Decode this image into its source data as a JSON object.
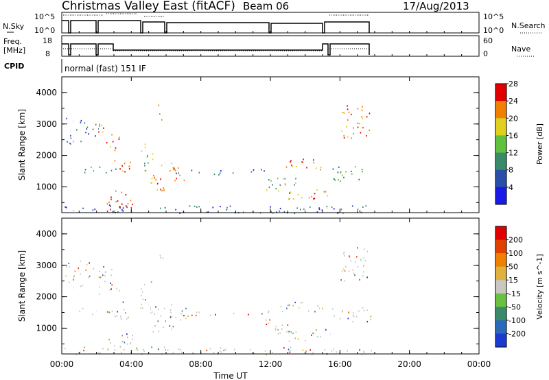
{
  "header": {
    "title": "Christmas Valley East (fitACF)",
    "beam": "Beam 06",
    "date": "17/Aug/2013"
  },
  "panels": {
    "nsky": {
      "label": "N.Sky",
      "ticks": [
        "10^5",
        "10^0"
      ],
      "right_label": "N.Search",
      "right_ticks": [
        "10^5",
        "10^0"
      ]
    },
    "freq": {
      "label_line1": "Freq.",
      "label_line2": "[MHz]",
      "ticks": [
        "18",
        "8"
      ],
      "right_label": "Nave",
      "right_ticks": [
        "60",
        "0"
      ]
    },
    "cpid": {
      "label": "CPID",
      "value": "normal (fast) 151 IF"
    }
  },
  "chart_data": [
    {
      "type": "heatmap",
      "title": "",
      "ylabel": "Slant Range [km]",
      "ylim": [
        180,
        4500
      ],
      "yticks": [
        "1000",
        "2000",
        "3000",
        "4000"
      ],
      "color_label": "Power [dB]",
      "color_ticks": [
        "4",
        "8",
        "12",
        "16",
        "20",
        "24",
        "28"
      ],
      "colors": [
        "#1a1ae6",
        "#2a4fa8",
        "#3a8a6a",
        "#60c040",
        "#e0d020",
        "#f08000",
        "#e00000"
      ],
      "clim": [
        0,
        31
      ]
    },
    {
      "type": "heatmap",
      "title": "",
      "ylabel": "Slant Range [km]",
      "ylim": [
        180,
        4500
      ],
      "yticks": [
        "1000",
        "2000",
        "3000",
        "4000"
      ],
      "color_label": "Velocity [m s^-1]",
      "color_ticks": [
        "200",
        "100",
        "50",
        "15",
        "-15",
        "-50",
        "-100",
        "-200"
      ],
      "colors": [
        "#1a3ad0",
        "#2a6ab8",
        "#3a8a6a",
        "#6ac040",
        "#c8c8c0",
        "#e0b040",
        "#f08000",
        "#e04000",
        "#e00000"
      ],
      "clim": [
        -250,
        250
      ]
    }
  ],
  "x_axis": {
    "label": "Time UT",
    "ticks": [
      "00:00",
      "04:00",
      "08:00",
      "12:00",
      "16:00",
      "20:00",
      "00:00"
    ],
    "range_hours": [
      0,
      24
    ]
  }
}
